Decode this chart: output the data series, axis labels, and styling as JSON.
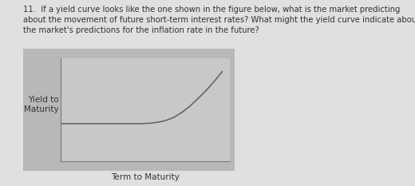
{
  "title_text": "11.  If a yield curve looks like the one shown in the figure below, what is the market predicting\nabout the movement of future short-term interest rates? What might the yield curve indicate about\nthe market's predictions for the inflation rate in the future?",
  "xlabel": "Term to Maturity",
  "ylabel": "Yield to\nMaturity",
  "page_background": "#e0e0e0",
  "outer_box_color": "#b8b8b8",
  "inner_plot_color": "#c8c8c8",
  "curve_color": "#666666",
  "title_fontsize": 7.2,
  "axis_label_fontsize": 7.5,
  "curve_x": [
    0.0,
    0.05,
    0.1,
    0.2,
    0.3,
    0.4,
    0.5,
    0.55,
    0.6,
    0.65,
    0.7,
    0.75,
    0.8,
    0.85,
    0.9,
    0.95,
    1.0
  ],
  "curve_y": [
    0.42,
    0.42,
    0.42,
    0.42,
    0.42,
    0.42,
    0.42,
    0.425,
    0.435,
    0.455,
    0.49,
    0.545,
    0.615,
    0.7,
    0.79,
    0.89,
    1.0
  ]
}
